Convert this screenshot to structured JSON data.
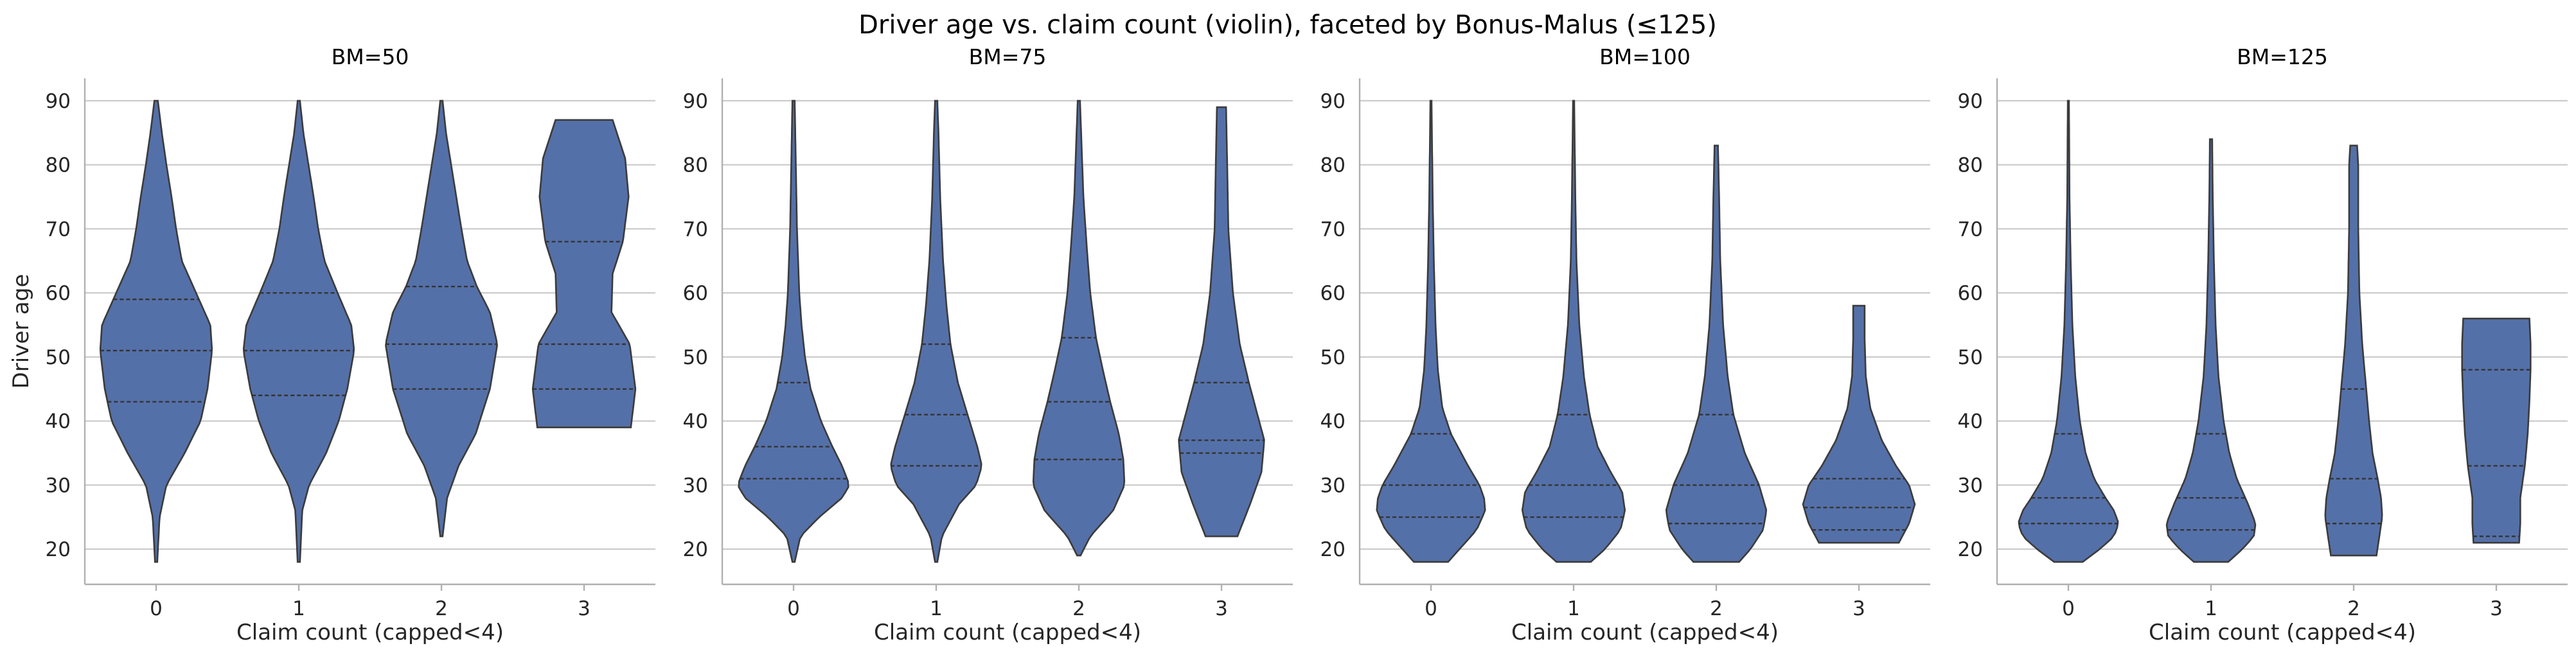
{
  "chart_data": {
    "type": "violin",
    "title": "Driver age vs. claim count (violin), faceted by Bonus-Malus (≤125)",
    "xlabel": "Claim count (capped<4)",
    "ylabel": "Driver age",
    "yticks": [
      20,
      30,
      40,
      50,
      60,
      70,
      80,
      90
    ],
    "ylim": [
      14.5,
      93.5
    ],
    "categories": [
      "0",
      "1",
      "2",
      "3"
    ],
    "grid": "horizontal",
    "color": "#5470a8",
    "facets": [
      {
        "title": "BM=50",
        "violins": [
          {
            "category": "0",
            "min": 18,
            "max": 90,
            "q1": 43,
            "median": 51,
            "q3": 59,
            "profile": [
              [
                18,
                0.02
              ],
              [
                25,
                0.06
              ],
              [
                30,
                0.18
              ],
              [
                35,
                0.5
              ],
              [
                40,
                0.78
              ],
              [
                45,
                0.9
              ],
              [
                51,
                0.98
              ],
              [
                55,
                0.95
              ],
              [
                59,
                0.75
              ],
              [
                65,
                0.45
              ],
              [
                70,
                0.35
              ],
              [
                75,
                0.27
              ],
              [
                80,
                0.18
              ],
              [
                85,
                0.1
              ],
              [
                90,
                0.03
              ]
            ]
          },
          {
            "category": "1",
            "min": 18,
            "max": 90,
            "q1": 44,
            "median": 51,
            "q3": 60,
            "profile": [
              [
                18,
                0.02
              ],
              [
                26,
                0.06
              ],
              [
                30,
                0.18
              ],
              [
                35,
                0.48
              ],
              [
                40,
                0.7
              ],
              [
                45,
                0.85
              ],
              [
                51,
                0.97
              ],
              [
                55,
                0.92
              ],
              [
                60,
                0.68
              ],
              [
                65,
                0.45
              ],
              [
                70,
                0.34
              ],
              [
                75,
                0.26
              ],
              [
                80,
                0.17
              ],
              [
                85,
                0.08
              ],
              [
                90,
                0.02
              ]
            ]
          },
          {
            "category": "2",
            "min": 22,
            "max": 90,
            "q1": 45,
            "median": 52,
            "q3": 61,
            "profile": [
              [
                22,
                0.02
              ],
              [
                28,
                0.1
              ],
              [
                33,
                0.3
              ],
              [
                38,
                0.6
              ],
              [
                45,
                0.85
              ],
              [
                52,
                0.98
              ],
              [
                57,
                0.85
              ],
              [
                61,
                0.62
              ],
              [
                65,
                0.45
              ],
              [
                70,
                0.35
              ],
              [
                75,
                0.26
              ],
              [
                80,
                0.17
              ],
              [
                85,
                0.08
              ],
              [
                90,
                0.02
              ]
            ]
          },
          {
            "category": "3",
            "min": 39,
            "max": 87,
            "q1": 45,
            "median": 52,
            "q3": 68,
            "profile": [
              [
                39,
                0.82
              ],
              [
                45,
                0.9
              ],
              [
                52,
                0.8
              ],
              [
                57,
                0.48
              ],
              [
                63,
                0.5
              ],
              [
                68,
                0.68
              ],
              [
                75,
                0.78
              ],
              [
                81,
                0.72
              ],
              [
                87,
                0.5
              ]
            ]
          }
        ]
      },
      {
        "title": "BM=75",
        "violins": [
          {
            "category": "0",
            "min": 18,
            "max": 90,
            "q1": 31,
            "median": 36,
            "q3": 46,
            "profile": [
              [
                18,
                0.02
              ],
              [
                22,
                0.12
              ],
              [
                25,
                0.45
              ],
              [
                28,
                0.85
              ],
              [
                30,
                0.98
              ],
              [
                33,
                0.85
              ],
              [
                36,
                0.68
              ],
              [
                40,
                0.48
              ],
              [
                45,
                0.3
              ],
              [
                50,
                0.2
              ],
              [
                55,
                0.14
              ],
              [
                60,
                0.1
              ],
              [
                70,
                0.06
              ],
              [
                80,
                0.04
              ],
              [
                90,
                0.02
              ]
            ]
          },
          {
            "category": "1",
            "min": 18,
            "max": 90,
            "q1": 33,
            "median": 41,
            "q3": 52,
            "profile": [
              [
                18,
                0.02
              ],
              [
                22,
                0.1
              ],
              [
                27,
                0.4
              ],
              [
                30,
                0.7
              ],
              [
                33,
                0.8
              ],
              [
                36,
                0.72
              ],
              [
                41,
                0.55
              ],
              [
                46,
                0.38
              ],
              [
                52,
                0.25
              ],
              [
                58,
                0.18
              ],
              [
                65,
                0.12
              ],
              [
                75,
                0.07
              ],
              [
                85,
                0.04
              ],
              [
                90,
                0.02
              ]
            ]
          },
          {
            "category": "2",
            "min": 19,
            "max": 90,
            "q1": 34,
            "median": 43,
            "q3": 53,
            "profile": [
              [
                19,
                0.03
              ],
              [
                22,
                0.2
              ],
              [
                26,
                0.6
              ],
              [
                30,
                0.8
              ],
              [
                34,
                0.78
              ],
              [
                38,
                0.7
              ],
              [
                43,
                0.55
              ],
              [
                48,
                0.42
              ],
              [
                53,
                0.3
              ],
              [
                60,
                0.2
              ],
              [
                67,
                0.14
              ],
              [
                75,
                0.08
              ],
              [
                85,
                0.04
              ],
              [
                90,
                0.02
              ]
            ]
          },
          {
            "category": "3",
            "min": 22,
            "max": 89,
            "q1": 35,
            "median": 37,
            "q3": 46,
            "profile": [
              [
                22,
                0.28
              ],
              [
                27,
                0.5
              ],
              [
                32,
                0.7
              ],
              [
                37,
                0.75
              ],
              [
                42,
                0.6
              ],
              [
                46,
                0.48
              ],
              [
                52,
                0.32
              ],
              [
                60,
                0.2
              ],
              [
                70,
                0.12
              ],
              [
                80,
                0.1
              ],
              [
                89,
                0.08
              ]
            ]
          }
        ]
      },
      {
        "title": "BM=100",
        "violins": [
          {
            "category": "0",
            "min": 18,
            "max": 90,
            "q1": 25,
            "median": 30,
            "q3": 38,
            "profile": [
              [
                18,
                0.3
              ],
              [
                20,
                0.5
              ],
              [
                23,
                0.8
              ],
              [
                26,
                0.95
              ],
              [
                28,
                0.93
              ],
              [
                30,
                0.85
              ],
              [
                33,
                0.65
              ],
              [
                38,
                0.35
              ],
              [
                42,
                0.2
              ],
              [
                48,
                0.12
              ],
              [
                55,
                0.08
              ],
              [
                65,
                0.05
              ],
              [
                75,
                0.03
              ],
              [
                90,
                0.01
              ]
            ]
          },
          {
            "category": "1",
            "min": 18,
            "max": 90,
            "q1": 25,
            "median": 30,
            "q3": 41,
            "profile": [
              [
                18,
                0.3
              ],
              [
                20,
                0.55
              ],
              [
                23,
                0.82
              ],
              [
                26,
                0.9
              ],
              [
                29,
                0.85
              ],
              [
                32,
                0.65
              ],
              [
                36,
                0.42
              ],
              [
                41,
                0.28
              ],
              [
                47,
                0.18
              ],
              [
                55,
                0.1
              ],
              [
                65,
                0.05
              ],
              [
                75,
                0.03
              ],
              [
                90,
                0.01
              ]
            ]
          },
          {
            "category": "2",
            "min": 18,
            "max": 83,
            "q1": 24,
            "median": 30,
            "q3": 41,
            "profile": [
              [
                18,
                0.4
              ],
              [
                20,
                0.6
              ],
              [
                23,
                0.82
              ],
              [
                26,
                0.88
              ],
              [
                30,
                0.75
              ],
              [
                35,
                0.5
              ],
              [
                41,
                0.3
              ],
              [
                47,
                0.2
              ],
              [
                55,
                0.12
              ],
              [
                65,
                0.07
              ],
              [
                75,
                0.05
              ],
              [
                83,
                0.03
              ]
            ]
          },
          {
            "category": "3",
            "min": 21,
            "max": 58,
            "q1": 23,
            "median": 26.5,
            "q3": 31,
            "profile": [
              [
                21,
                0.7
              ],
              [
                24,
                0.88
              ],
              [
                27,
                0.98
              ],
              [
                30,
                0.88
              ],
              [
                33,
                0.65
              ],
              [
                37,
                0.4
              ],
              [
                42,
                0.2
              ],
              [
                47,
                0.12
              ],
              [
                53,
                0.1
              ],
              [
                58,
                0.1
              ]
            ]
          }
        ]
      },
      {
        "title": "BM=125",
        "violins": [
          {
            "category": "0",
            "min": 18,
            "max": 90,
            "q1": 24,
            "median": 28,
            "q3": 38,
            "profile": [
              [
                18,
                0.25
              ],
              [
                20,
                0.55
              ],
              [
                22,
                0.8
              ],
              [
                24,
                0.88
              ],
              [
                26,
                0.8
              ],
              [
                28,
                0.65
              ],
              [
                31,
                0.45
              ],
              [
                35,
                0.3
              ],
              [
                40,
                0.2
              ],
              [
                47,
                0.12
              ],
              [
                55,
                0.07
              ],
              [
                65,
                0.04
              ],
              [
                75,
                0.02
              ],
              [
                90,
                0.01
              ]
            ]
          },
          {
            "category": "1",
            "min": 18,
            "max": 84,
            "q1": 23,
            "median": 28,
            "q3": 38,
            "profile": [
              [
                18,
                0.3
              ],
              [
                20,
                0.55
              ],
              [
                22,
                0.75
              ],
              [
                24,
                0.78
              ],
              [
                27,
                0.65
              ],
              [
                31,
                0.45
              ],
              [
                35,
                0.32
              ],
              [
                40,
                0.22
              ],
              [
                47,
                0.13
              ],
              [
                55,
                0.08
              ],
              [
                65,
                0.05
              ],
              [
                75,
                0.03
              ],
              [
                84,
                0.02
              ]
            ]
          },
          {
            "category": "2",
            "min": 19,
            "max": 83,
            "q1": 24,
            "median": 31,
            "q3": 45,
            "profile": [
              [
                19,
                0.4
              ],
              [
                22,
                0.45
              ],
              [
                25,
                0.5
              ],
              [
                28,
                0.48
              ],
              [
                31,
                0.42
              ],
              [
                35,
                0.33
              ],
              [
                40,
                0.27
              ],
              [
                45,
                0.22
              ],
              [
                52,
                0.15
              ],
              [
                60,
                0.1
              ],
              [
                70,
                0.08
              ],
              [
                80,
                0.08
              ],
              [
                83,
                0.06
              ]
            ]
          },
          {
            "category": "3",
            "min": 21,
            "max": 56,
            "q1": 22,
            "median": 33,
            "q3": 48,
            "profile": [
              [
                21,
                0.4
              ],
              [
                24,
                0.42
              ],
              [
                28,
                0.42
              ],
              [
                33,
                0.5
              ],
              [
                38,
                0.55
              ],
              [
                43,
                0.58
              ],
              [
                48,
                0.6
              ],
              [
                52,
                0.6
              ],
              [
                56,
                0.58
              ]
            ]
          }
        ]
      }
    ]
  }
}
